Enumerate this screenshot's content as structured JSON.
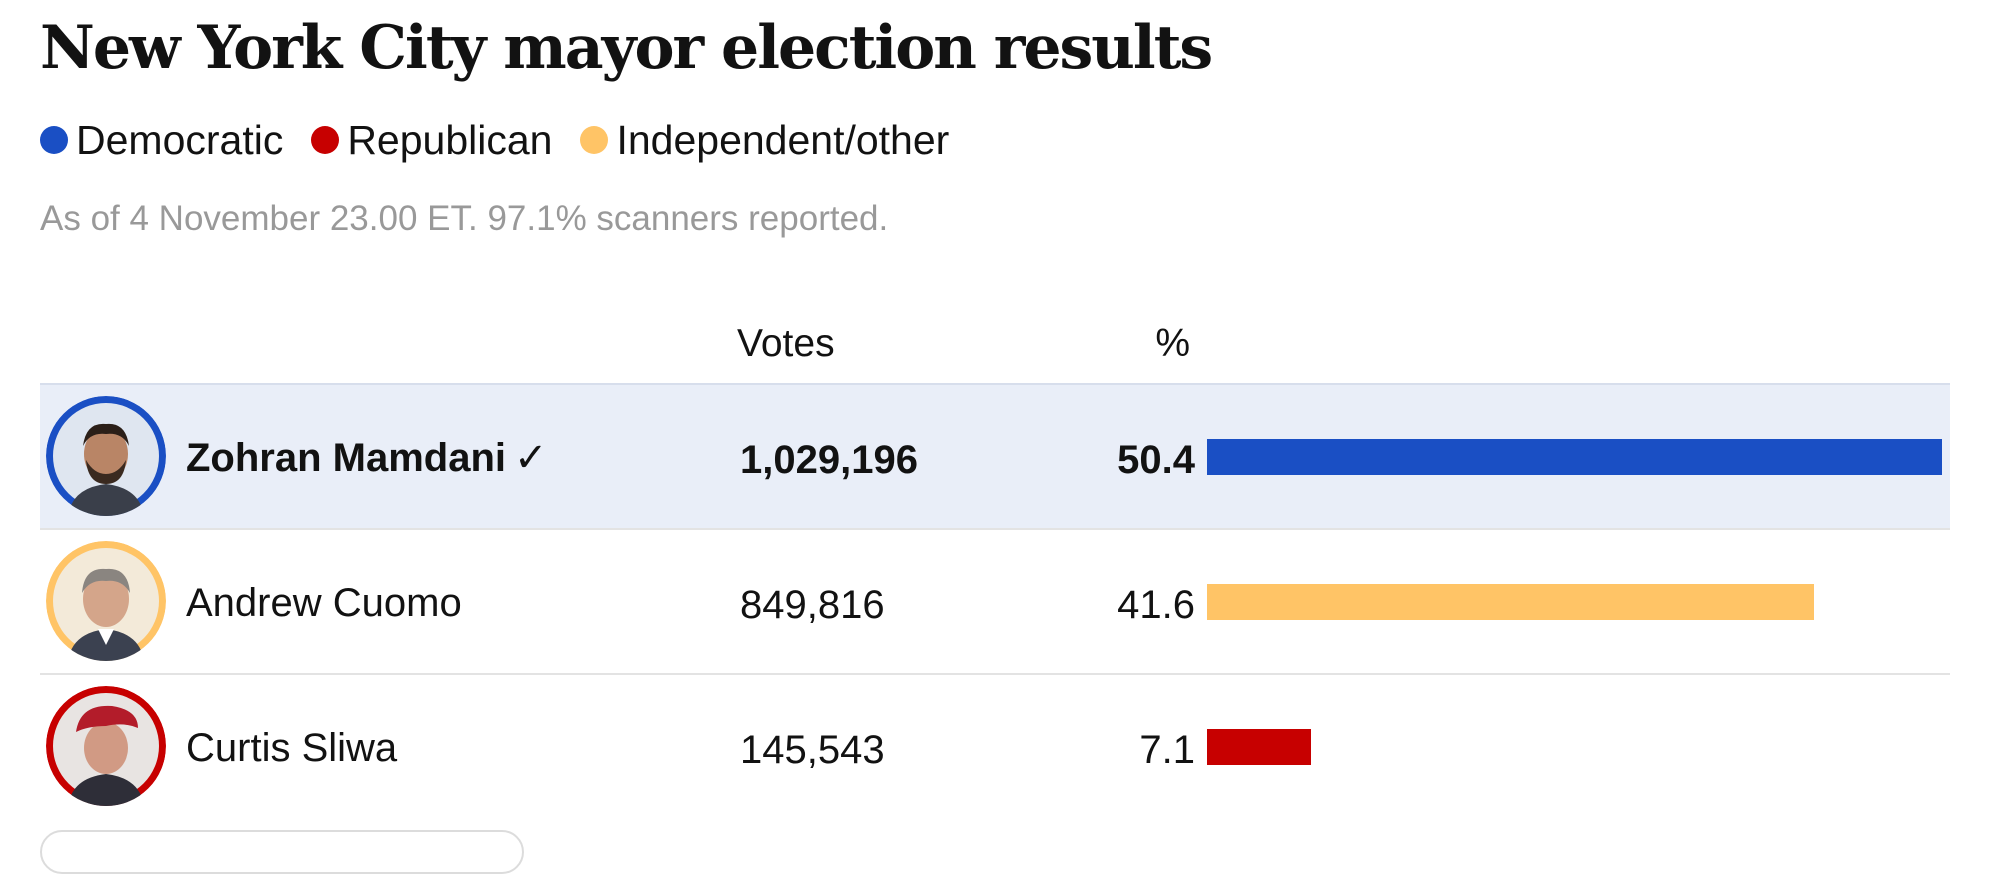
{
  "title": "New York City mayor election results",
  "legend": [
    {
      "label": "Democratic",
      "color": "#1a4fc4"
    },
    {
      "label": "Republican",
      "color": "#c70000"
    },
    {
      "label": "Independent/other",
      "color": "#ffc466"
    }
  ],
  "note": "As of 4 November 23.00 ET. 97.1% scanners reported.",
  "table": {
    "votes_header": "Votes",
    "pct_header": "%"
  },
  "chart_data": {
    "type": "bar",
    "categories": [
      "Zohran Mamdani",
      "Andrew Cuomo",
      "Curtis Sliwa"
    ],
    "votes": [
      1029196,
      849816,
      145543
    ],
    "votes_display": [
      "1,029,196",
      "849,816",
      "145,543"
    ],
    "values": [
      50.4,
      41.6,
      7.1
    ],
    "values_display": [
      "50.4",
      "41.6",
      "7.1"
    ],
    "party": [
      "Democratic",
      "Independent/other",
      "Republican"
    ],
    "colors": [
      "#1a4fc4",
      "#ffc466",
      "#c70000"
    ],
    "winner_index": 0,
    "winner_mark": "✓",
    "xlim": [
      0,
      50.4
    ]
  }
}
